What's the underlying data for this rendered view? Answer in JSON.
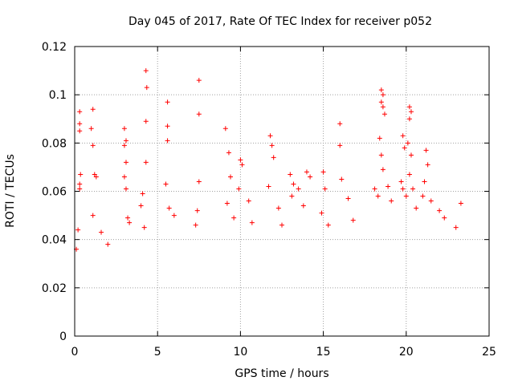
{
  "chart_data": {
    "type": "scatter",
    "title": "Day 045 of 2017, Rate Of TEC Index for receiver p052",
    "xlabel": "GPS time / hours",
    "ylabel": "ROTI / TECUs",
    "xlim": [
      0,
      25
    ],
    "ylim": [
      0,
      0.12
    ],
    "x_ticks": [
      0,
      5,
      10,
      15,
      20,
      25
    ],
    "y_ticks": [
      0,
      0.02,
      0.04,
      0.06,
      0.08,
      0.1,
      0.12
    ],
    "x_tick_labels": [
      "0",
      "5",
      "10",
      "15",
      "20",
      "25"
    ],
    "y_tick_labels": [
      "0",
      "0.02",
      "0.04",
      "0.06",
      "0.08",
      "0.1",
      "0.12"
    ],
    "grid": true,
    "marker": "+",
    "color": "#ff0000",
    "series": [
      {
        "name": "ROTI",
        "points": [
          [
            0.3,
            0.093
          ],
          [
            0.3,
            0.088
          ],
          [
            0.3,
            0.085
          ],
          [
            0.35,
            0.067
          ],
          [
            0.3,
            0.063
          ],
          [
            0.3,
            0.061
          ],
          [
            0.2,
            0.044
          ],
          [
            0.1,
            0.036
          ],
          [
            1.1,
            0.094
          ],
          [
            1.0,
            0.086
          ],
          [
            1.1,
            0.079
          ],
          [
            1.2,
            0.067
          ],
          [
            1.3,
            0.066
          ],
          [
            1.1,
            0.05
          ],
          [
            1.6,
            0.043
          ],
          [
            2.0,
            0.038
          ],
          [
            3.0,
            0.086
          ],
          [
            3.1,
            0.081
          ],
          [
            3.0,
            0.079
          ],
          [
            3.1,
            0.072
          ],
          [
            3.0,
            0.066
          ],
          [
            3.1,
            0.061
          ],
          [
            3.2,
            0.049
          ],
          [
            3.3,
            0.047
          ],
          [
            4.3,
            0.11
          ],
          [
            4.35,
            0.103
          ],
          [
            4.3,
            0.089
          ],
          [
            4.3,
            0.072
          ],
          [
            4.1,
            0.059
          ],
          [
            4.0,
            0.054
          ],
          [
            4.2,
            0.045
          ],
          [
            5.6,
            0.097
          ],
          [
            5.6,
            0.087
          ],
          [
            5.6,
            0.081
          ],
          [
            5.5,
            0.063
          ],
          [
            5.7,
            0.053
          ],
          [
            6.0,
            0.05
          ],
          [
            7.5,
            0.106
          ],
          [
            7.5,
            0.092
          ],
          [
            7.5,
            0.064
          ],
          [
            7.4,
            0.052
          ],
          [
            7.3,
            0.046
          ],
          [
            9.1,
            0.086
          ],
          [
            9.3,
            0.076
          ],
          [
            9.4,
            0.066
          ],
          [
            9.2,
            0.055
          ],
          [
            9.6,
            0.049
          ],
          [
            10.0,
            0.073
          ],
          [
            10.1,
            0.071
          ],
          [
            9.9,
            0.061
          ],
          [
            10.5,
            0.056
          ],
          [
            10.7,
            0.047
          ],
          [
            11.8,
            0.083
          ],
          [
            11.9,
            0.079
          ],
          [
            12.0,
            0.074
          ],
          [
            11.7,
            0.062
          ],
          [
            12.3,
            0.053
          ],
          [
            12.5,
            0.046
          ],
          [
            13.0,
            0.067
          ],
          [
            13.2,
            0.063
          ],
          [
            13.5,
            0.061
          ],
          [
            13.1,
            0.058
          ],
          [
            14.0,
            0.068
          ],
          [
            14.2,
            0.066
          ],
          [
            13.8,
            0.054
          ],
          [
            15.0,
            0.068
          ],
          [
            15.1,
            0.061
          ],
          [
            14.9,
            0.051
          ],
          [
            15.3,
            0.046
          ],
          [
            16.0,
            0.088
          ],
          [
            16.0,
            0.079
          ],
          [
            16.1,
            0.065
          ],
          [
            16.5,
            0.057
          ],
          [
            16.8,
            0.048
          ],
          [
            18.1,
            0.061
          ],
          [
            18.3,
            0.058
          ],
          [
            18.5,
            0.102
          ],
          [
            18.6,
            0.1
          ],
          [
            18.5,
            0.097
          ],
          [
            18.6,
            0.095
          ],
          [
            18.7,
            0.092
          ],
          [
            18.4,
            0.082
          ],
          [
            18.5,
            0.075
          ],
          [
            18.6,
            0.069
          ],
          [
            18.9,
            0.062
          ],
          [
            19.1,
            0.056
          ],
          [
            19.8,
            0.083
          ],
          [
            19.9,
            0.078
          ],
          [
            19.7,
            0.064
          ],
          [
            19.8,
            0.061
          ],
          [
            20.0,
            0.058
          ],
          [
            20.2,
            0.095
          ],
          [
            20.3,
            0.093
          ],
          [
            20.2,
            0.09
          ],
          [
            20.1,
            0.08
          ],
          [
            20.3,
            0.075
          ],
          [
            20.2,
            0.067
          ],
          [
            20.4,
            0.061
          ],
          [
            20.6,
            0.053
          ],
          [
            21.2,
            0.077
          ],
          [
            21.3,
            0.071
          ],
          [
            21.1,
            0.064
          ],
          [
            21.0,
            0.058
          ],
          [
            21.5,
            0.056
          ],
          [
            22.0,
            0.052
          ],
          [
            22.3,
            0.049
          ],
          [
            23.3,
            0.055
          ],
          [
            23.0,
            0.045
          ]
        ]
      }
    ]
  }
}
